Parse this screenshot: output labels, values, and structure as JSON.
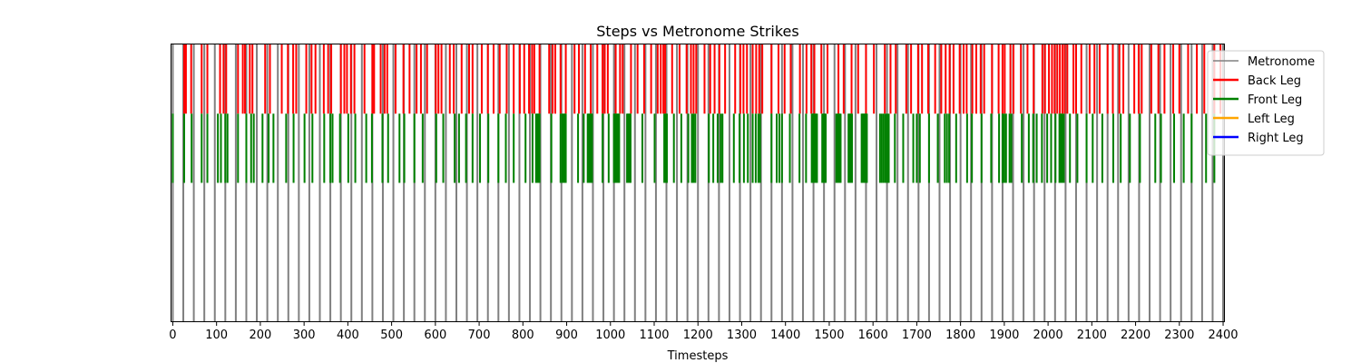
{
  "chart_data": {
    "type": "event-lines",
    "title": "Steps vs Metronome Strikes",
    "xlabel": "Timesteps",
    "ylabel": "",
    "xlim": [
      -3,
      2402
    ],
    "xticks": [
      0,
      100,
      200,
      300,
      400,
      500,
      600,
      700,
      800,
      900,
      1000,
      1100,
      1200,
      1300,
      1400,
      1500,
      1600,
      1700,
      1800,
      1900,
      2000,
      2100,
      2200,
      2300,
      2400
    ],
    "xtick_labels": [
      "0",
      "100",
      "200",
      "300",
      "400",
      "500",
      "600",
      "700",
      "800",
      "900",
      "1000",
      "1100",
      "1200",
      "1300",
      "1400",
      "1500",
      "1600",
      "1700",
      "1800",
      "1900",
      "2000",
      "2100",
      "2200",
      "2300",
      "2400"
    ],
    "grid": false,
    "legend_position": "upper-right-outside",
    "series": [
      {
        "name": "Metronome",
        "color": "#808080",
        "band": [
          0.0,
          1.0
        ],
        "x": [
          0,
          24,
          48,
          72,
          96,
          120,
          144,
          168,
          192,
          216,
          240,
          264,
          288,
          312,
          336,
          360,
          384,
          408,
          432,
          456,
          480,
          504,
          528,
          552,
          576,
          600,
          624,
          648,
          672,
          696,
          720,
          744,
          768,
          792,
          816,
          840,
          864,
          888,
          912,
          936,
          960,
          984,
          1008,
          1032,
          1056,
          1080,
          1104,
          1128,
          1152,
          1176,
          1200,
          1224,
          1248,
          1272,
          1296,
          1320,
          1344,
          1368,
          1392,
          1416,
          1440,
          1464,
          1488,
          1512,
          1536,
          1560,
          1584,
          1608,
          1632,
          1656,
          1680,
          1704,
          1728,
          1752,
          1776,
          1800,
          1824,
          1848,
          1872,
          1896,
          1920,
          1944,
          1968,
          1992,
          2016,
          2040,
          2064,
          2088,
          2112,
          2136,
          2160,
          2184,
          2208,
          2232,
          2256,
          2280,
          2304,
          2328,
          2352,
          2376,
          2400
        ]
      },
      {
        "name": "Back Leg",
        "color": "#ff0000",
        "band": [
          0.75,
          1.0
        ],
        "x": [
          26,
          30,
          42,
          66,
          79,
          108,
          116,
          122,
          149,
          160,
          165,
          176,
          182,
          211,
          222,
          249,
          263,
          275,
          282,
          305,
          317,
          326,
          345,
          355,
          362,
          384,
          392,
          398,
          407,
          415,
          438,
          456,
          460,
          475,
          484,
          490,
          509,
          527,
          541,
          557,
          567,
          581,
          601,
          607,
          614,
          633,
          642,
          660,
          677,
          685,
          706,
          720,
          733,
          747,
          763,
          779,
          793,
          803,
          814,
          821,
          826,
          838,
          860,
          868,
          874,
          886,
          898,
          918,
          928,
          942,
          955,
          970,
          982,
          987,
          994,
          1012,
          1022,
          1028,
          1047,
          1062,
          1077,
          1093,
          1108,
          1115,
          1121,
          1125,
          1141,
          1158,
          1174,
          1184,
          1190,
          1196,
          1215,
          1228,
          1238,
          1249,
          1262,
          1285,
          1297,
          1304,
          1312,
          1325,
          1333,
          1340,
          1347,
          1368,
          1384,
          1398,
          1412,
          1433,
          1448,
          1459,
          1466,
          1482,
          1496,
          1521,
          1533,
          1551,
          1566,
          1584,
          1602,
          1627,
          1640,
          1652,
          1676,
          1687,
          1703,
          1712,
          1726,
          1742,
          1756,
          1766,
          1775,
          1784,
          1798,
          1807,
          1814,
          1827,
          1836,
          1846,
          1854,
          1872,
          1887,
          1896,
          1901,
          1914,
          1921,
          1938,
          1953,
          1967,
          1987,
          1993,
          2002,
          2009,
          2015,
          2021,
          2027,
          2033,
          2038,
          2044,
          2058,
          2064,
          2076,
          2095,
          2106,
          2118,
          2136,
          2148,
          2163,
          2172,
          2197,
          2207,
          2214,
          2236,
          2252,
          2266,
          2286,
          2300,
          2320,
          2340,
          2357,
          2380,
          2394
        ]
      },
      {
        "name": "Front Leg",
        "color": "#008000",
        "band": [
          0.5,
          0.75
        ],
        "x": [
          0,
          26,
          43,
          66,
          79,
          103,
          110,
          120,
          125,
          149,
          168,
          179,
          185,
          205,
          219,
          230,
          259,
          276,
          301,
          319,
          346,
          360,
          365,
          382,
          401,
          417,
          442,
          455,
          479,
          492,
          518,
          529,
          552,
          571,
          602,
          618,
          644,
          654,
          670,
          685,
          702,
          721,
          744,
          761,
          779,
          806,
          822,
          830,
          832,
          834,
          836,
          838,
          865,
          886,
          890,
          892,
          894,
          896,
          898,
          926,
          939,
          948,
          950,
          952,
          954,
          956,
          958,
          982,
          996,
          1008,
          1010,
          1012,
          1014,
          1016,
          1018,
          1020,
          1038,
          1040,
          1042,
          1044,
          1046,
          1073,
          1101,
          1123,
          1126,
          1129,
          1145,
          1162,
          1178,
          1186,
          1190,
          1194,
          1225,
          1235,
          1245,
          1252,
          1256,
          1282,
          1295,
          1305,
          1314,
          1325,
          1332,
          1338,
          1342,
          1368,
          1380,
          1386,
          1392,
          1410,
          1432,
          1447,
          1460,
          1462,
          1464,
          1466,
          1468,
          1470,
          1472,
          1484,
          1486,
          1488,
          1490,
          1492,
          1516,
          1518,
          1520,
          1522,
          1524,
          1526,
          1544,
          1546,
          1548,
          1550,
          1552,
          1574,
          1576,
          1578,
          1580,
          1582,
          1584,
          1586,
          1616,
          1620,
          1624,
          1628,
          1632,
          1636,
          1650,
          1669,
          1692,
          1700,
          1707,
          1728,
          1748,
          1764,
          1769,
          1774,
          1790,
          1815,
          1826,
          1848,
          1870,
          1888,
          1896,
          1900,
          1904,
          1912,
          1916,
          1940,
          1956,
          1966,
          1974,
          1986,
          1998,
          2007,
          2017,
          2026,
          2028,
          2030,
          2032,
          2036,
          2050,
          2067,
          2088,
          2102,
          2124,
          2149,
          2166,
          2187,
          2210,
          2245,
          2258,
          2288,
          2310,
          2328,
          2361,
          2380
        ]
      },
      {
        "name": "Left Leg",
        "color": "#ffa500",
        "band": [
          0.25,
          0.5
        ],
        "x": []
      },
      {
        "name": "Right Leg",
        "color": "#0000ff",
        "band": [
          0.0,
          0.25
        ],
        "x": []
      }
    ]
  }
}
